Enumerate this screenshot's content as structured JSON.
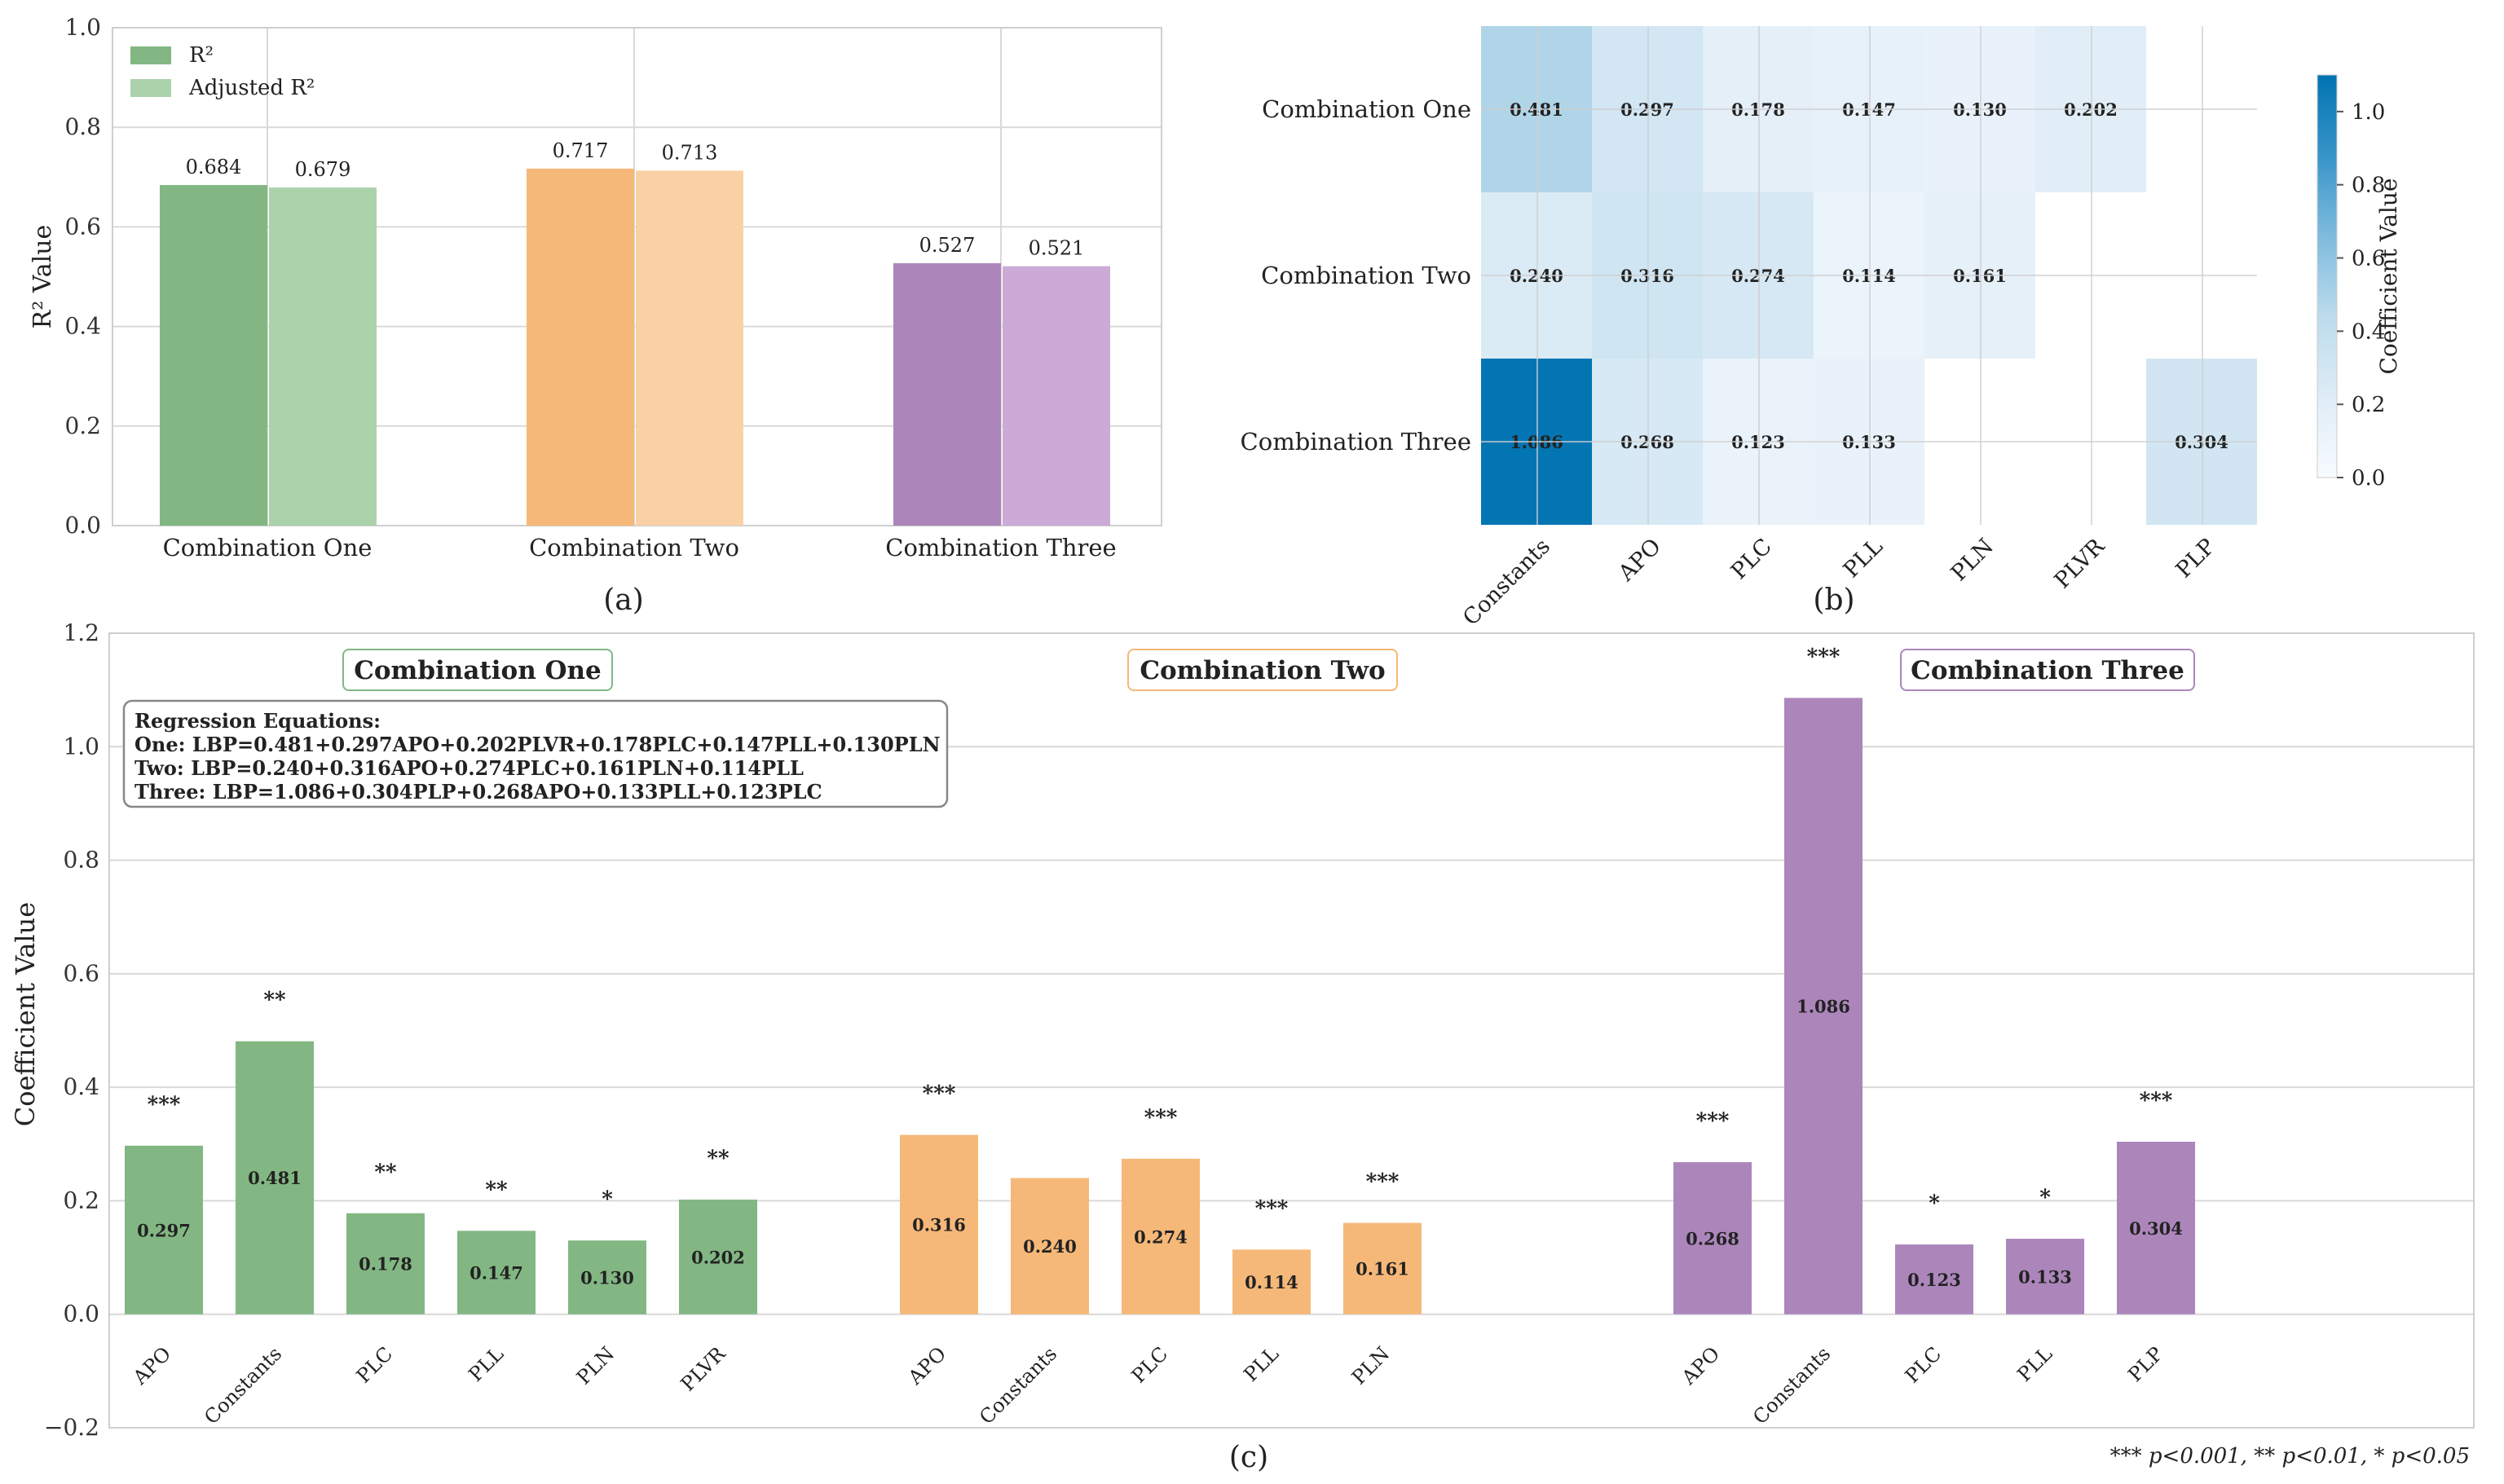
{
  "panel_labels": {
    "a": "(a)",
    "b": "(b)",
    "c": "(c)"
  },
  "chart_data": [
    {
      "type": "bar",
      "panel": "a",
      "categories": [
        "Combination One",
        "Combination Two",
        "Combination Three"
      ],
      "series": [
        {
          "name": "R²",
          "values": [
            0.684,
            0.717,
            0.527
          ]
        },
        {
          "name": "Adjusted R²",
          "values": [
            0.679,
            0.713,
            0.521
          ]
        }
      ],
      "value_labels": [
        [
          "0.684",
          "0.679"
        ],
        [
          "0.717",
          "0.713"
        ],
        [
          "0.527",
          "0.521"
        ]
      ],
      "colors": [
        [
          "#82b783",
          "#abd2ab"
        ],
        [
          "#f6b878",
          "#f9d1a5"
        ],
        [
          "#ac86bb",
          "#cbabd6"
        ]
      ],
      "ylabel": "R² Value",
      "ylim": [
        0,
        1.0
      ],
      "yticks": [
        "0.0",
        "0.2",
        "0.4",
        "0.6",
        "0.8",
        "1.0"
      ],
      "legend_position": "top-left",
      "grid": true
    },
    {
      "type": "heatmap",
      "panel": "b",
      "rows": [
        "Combination One",
        "Combination Two",
        "Combination Three"
      ],
      "columns": [
        "Constants",
        "APO",
        "PLC",
        "PLL",
        "PLN",
        "PLVR",
        "PLP"
      ],
      "values": [
        [
          0.481,
          0.297,
          0.178,
          0.147,
          0.13,
          0.202,
          null
        ],
        [
          0.24,
          0.316,
          0.274,
          0.114,
          0.161,
          null,
          null
        ],
        [
          1.086,
          0.268,
          0.123,
          0.133,
          null,
          null,
          0.304
        ]
      ],
      "cell_labels": [
        [
          "0.481",
          "0.297",
          "0.178",
          "0.147",
          "0.130",
          "0.202",
          ""
        ],
        [
          "0.240",
          "0.316",
          "0.274",
          "0.114",
          "0.161",
          "",
          ""
        ],
        [
          "1.086",
          "0.268",
          "0.123",
          "0.133",
          "",
          "",
          "0.304"
        ]
      ],
      "colorbar": {
        "label": "Coefficient Value",
        "min": 0,
        "max": 1.1,
        "ticks": [
          "0.0",
          "0.2",
          "0.4",
          "0.6",
          "0.8",
          "1.0"
        ]
      }
    },
    {
      "type": "bar",
      "panel": "c",
      "ylabel": "Coefficient Value",
      "ylim": [
        -0.2,
        1.2
      ],
      "yticks": [
        "−0.2",
        "0.0",
        "0.2",
        "0.4",
        "0.6",
        "0.8",
        "1.0",
        "1.2"
      ],
      "groups": [
        {
          "name": "Combination One",
          "color": "#82b783",
          "categories": [
            "APO",
            "Constants",
            "PLC",
            "PLL",
            "PLN",
            "PLVR"
          ],
          "values": [
            0.297,
            0.481,
            0.178,
            0.147,
            0.13,
            0.202
          ],
          "labels": [
            "0.297",
            "0.481",
            "0.178",
            "0.147",
            "0.130",
            "0.202"
          ],
          "significance": [
            "***",
            "**",
            "**",
            "**",
            "*",
            "**"
          ]
        },
        {
          "name": "Combination Two",
          "color": "#f6b878",
          "categories": [
            "APO",
            "Constants",
            "PLC",
            "PLL",
            "PLN"
          ],
          "values": [
            0.316,
            0.24,
            0.274,
            0.114,
            0.161
          ],
          "labels": [
            "0.316",
            "0.240",
            "0.274",
            "0.114",
            "0.161"
          ],
          "significance": [
            "***",
            "",
            "***",
            "***",
            "***"
          ]
        },
        {
          "name": "Combination Three",
          "color": "#ac86bb",
          "categories": [
            "APO",
            "Constants",
            "PLC",
            "PLL",
            "PLP"
          ],
          "values": [
            0.268,
            1.086,
            0.123,
            0.133,
            0.304
          ],
          "labels": [
            "0.268",
            "1.086",
            "0.123",
            "0.133",
            "0.304"
          ],
          "significance": [
            "***",
            "***",
            "*",
            "*",
            "***"
          ]
        }
      ],
      "equations": {
        "title": "Regression Equations:",
        "lines": [
          "One: LBP=0.481+0.297APO+0.202PLVR+0.178PLC+0.147PLL+0.130PLN",
          "Two: LBP=0.240+0.316APO+0.274PLC+0.161PLN+0.114PLL",
          "Three: LBP=1.086+0.304PLP+0.268APO+0.133PLL+0.123PLC"
        ]
      },
      "footnote": "*** p<0.001, ** p<0.01, * p<0.05"
    }
  ]
}
